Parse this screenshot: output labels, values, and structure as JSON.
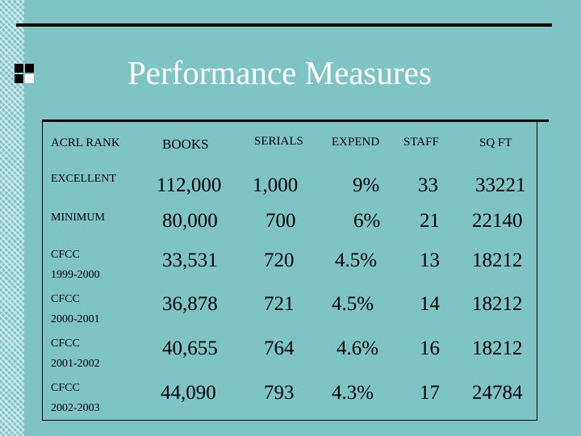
{
  "slide": {
    "title": "Performance Measures"
  },
  "table": {
    "headers": [
      "ACRL RANK",
      "BOOKS",
      "SERIALS",
      "EXPEND",
      "STAFF",
      "SQ FT"
    ],
    "rows": [
      {
        "rank": "EXCELLENT",
        "books": "112,000",
        "serials": "1,000",
        "expend": "9%",
        "staff": "33",
        "sqft": "33221"
      },
      {
        "rank": "MINIMUM",
        "books": "80,000",
        "serials": "700",
        "expend": "6%",
        "staff": "21",
        "sqft": "22140"
      },
      {
        "rank": "CFCC 1999-2000",
        "rank_line1": "CFCC",
        "rank_line2": "1999-2000",
        "books": "33,531",
        "serials": "720",
        "expend": "4.5%",
        "staff": "13",
        "sqft": "18212"
      },
      {
        "rank": "CFCC 2000-2001",
        "rank_line1": "CFCC",
        "rank_line2": "2000-2001",
        "books": "36,878",
        "serials": "721",
        "expend": "4.5%",
        "staff": "14",
        "sqft": "18212"
      },
      {
        "rank": "CFCC 2001-2002",
        "rank_line1": "CFCC",
        "rank_line2": "2001-2002",
        "books": "40,655",
        "serials": "764",
        "expend": "4.6%",
        "staff": "16",
        "sqft": "18212"
      },
      {
        "rank": "CFCC 2002-2003",
        "rank_line1": "CFCC",
        "rank_line2": "2002-2003",
        "books": "44,090",
        "serials": "793",
        "expend": "4.3%",
        "staff": "17",
        "sqft": "24784"
      }
    ]
  }
}
